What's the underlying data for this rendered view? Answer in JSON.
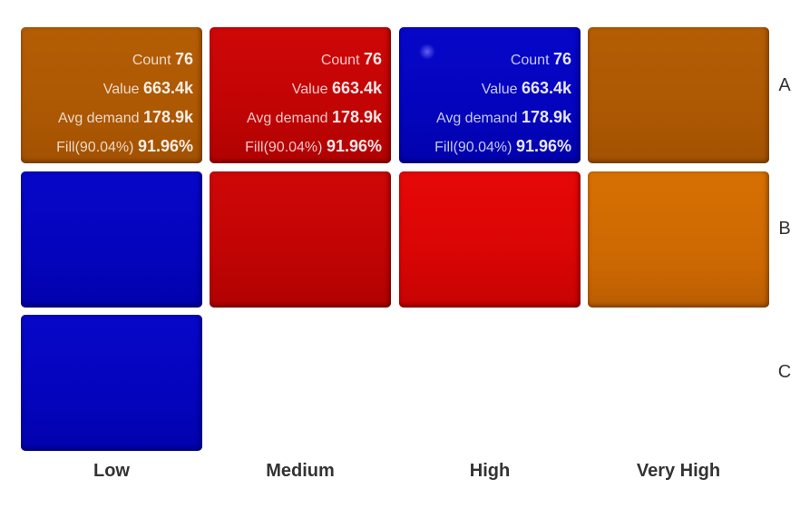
{
  "chart_data": {
    "type": "heatmap",
    "columns": [
      "Low",
      "Medium",
      "High",
      "Very High"
    ],
    "rows": [
      "A",
      "B",
      "C"
    ],
    "cells": [
      {
        "row": "A",
        "col": "Low",
        "color": "#b05a04",
        "labels": {
          "count": "76",
          "value": "663.4k",
          "avg_demand": "178.9k",
          "fill": "91.96%"
        }
      },
      {
        "row": "A",
        "col": "Medium",
        "color": "#c40505",
        "labels": {
          "count": "76",
          "value": "663.4k",
          "avg_demand": "178.9k",
          "fill": "91.96%"
        }
      },
      {
        "row": "A",
        "col": "High",
        "color": "#0505c2",
        "labels": {
          "count": "76",
          "value": "663.4k",
          "avg_demand": "178.9k",
          "fill": "91.96%"
        }
      },
      {
        "row": "A",
        "col": "Very High",
        "color": "#b05a04"
      },
      {
        "row": "B",
        "col": "Low",
        "color": "#0505c2"
      },
      {
        "row": "B",
        "col": "Medium",
        "color": "#c40505"
      },
      {
        "row": "B",
        "col": "High",
        "color": "#dd0606"
      },
      {
        "row": "B",
        "col": "Very High",
        "color": "#d06a03"
      },
      {
        "row": "C",
        "col": "Low",
        "color": "#0505c2"
      }
    ],
    "label_text": {
      "count": "Count",
      "value": "Value",
      "avg_demand": "Avg demand",
      "fill": "Fill(90.04%)"
    },
    "legend": "none",
    "grid": false
  }
}
